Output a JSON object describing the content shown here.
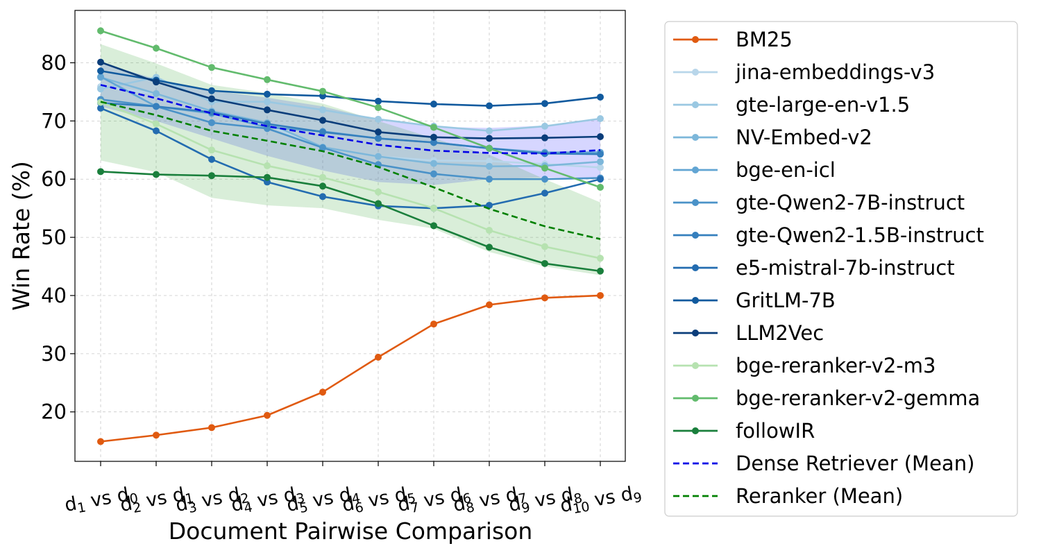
{
  "chart_data": {
    "type": "line",
    "title": "",
    "xlabel": "Document Pairwise Comparison",
    "ylabel": "Win Rate (%)",
    "ylim": [
      11.5,
      89
    ],
    "yticks": [
      20,
      30,
      40,
      50,
      60,
      70,
      80
    ],
    "grid": true,
    "legend_position": "outside-right",
    "categories": [
      {
        "left_sub": "1",
        "right_sub": "0",
        "label": "d1 vs d0"
      },
      {
        "left_sub": "2",
        "right_sub": "1",
        "label": "d2 vs d1"
      },
      {
        "left_sub": "3",
        "right_sub": "2",
        "label": "d3 vs d2"
      },
      {
        "left_sub": "4",
        "right_sub": "3",
        "label": "d4 vs d3"
      },
      {
        "left_sub": "5",
        "right_sub": "4",
        "label": "d5 vs d4"
      },
      {
        "left_sub": "6",
        "right_sub": "5",
        "label": "d6 vs d5"
      },
      {
        "left_sub": "7",
        "right_sub": "6",
        "label": "d7 vs d6"
      },
      {
        "left_sub": "8",
        "right_sub": "7",
        "label": "d8 vs d7"
      },
      {
        "left_sub": "9",
        "right_sub": "8",
        "label": "d9 vs d8"
      },
      {
        "left_sub": "10",
        "right_sub": "9",
        "label": "d10 vs d9"
      }
    ],
    "tick_letter": "d",
    "tick_vs": " vs ",
    "bands": [
      {
        "name": "Dense Retriever band",
        "color": "#6a6aff",
        "opacity": 0.28,
        "upper": [
          80.0,
          77.2,
          75.2,
          74.0,
          72.5,
          70.2,
          69.0,
          68.8,
          69.2,
          70.4
        ],
        "lower": [
          72.5,
          70.0,
          67.0,
          64.0,
          61.5,
          59.5,
          59.0,
          60.0,
          60.3,
          60.2
        ]
      },
      {
        "name": "Reranker band",
        "color": "#2ca02c",
        "opacity": 0.18,
        "upper": [
          83.2,
          79.9,
          76.2,
          74.8,
          73.0,
          70.0,
          67.0,
          64.2,
          60.0,
          56.0
        ],
        "lower": [
          63.2,
          61.2,
          56.8,
          55.5,
          55.0,
          53.0,
          51.5,
          47.5,
          45.0,
          43.5
        ]
      }
    ],
    "series": [
      {
        "name": "BM25",
        "color": "#e05a10",
        "dash": false,
        "marker": true,
        "values": [
          14.9,
          16.0,
          17.3,
          19.4,
          23.4,
          29.4,
          35.1,
          38.4,
          39.6,
          40.0
        ]
      },
      {
        "name": "jina-embeddings-v3",
        "color": "#b8d6ea",
        "dash": false,
        "marker": true,
        "values": [
          75.9,
          74.7,
          71.7,
          69.3,
          65.5,
          63.9,
          63.2,
          63.1,
          62.6,
          62.0
        ]
      },
      {
        "name": "gte-large-en-v1.5",
        "color": "#9ac8e2",
        "dash": false,
        "marker": true,
        "values": [
          75.5,
          77.5,
          73.3,
          73.3,
          71.9,
          70.3,
          69.1,
          68.3,
          69.1,
          70.4
        ]
      },
      {
        "name": "NV-Embed-v2",
        "color": "#7db7da",
        "dash": false,
        "marker": true,
        "values": [
          77.5,
          74.7,
          71.7,
          69.7,
          65.5,
          63.9,
          62.7,
          62.2,
          62.3,
          63.0
        ]
      },
      {
        "name": "bge-en-icl",
        "color": "#62a5d3",
        "dash": false,
        "marker": true,
        "values": [
          77.6,
          72.5,
          71.3,
          68.9,
          68.2,
          67.0,
          66.3,
          65.3,
          64.6,
          64.6
        ]
      },
      {
        "name": "gte-Qwen2-7B-instruct",
        "color": "#4a92c8",
        "dash": false,
        "marker": true,
        "values": [
          73.7,
          72.5,
          69.7,
          68.7,
          65.4,
          62.5,
          60.9,
          60.0,
          60.0,
          60.2
        ]
      },
      {
        "name": "gte-Qwen2-1.5B-instruct",
        "color": "#357fbd",
        "dash": false,
        "marker": true,
        "values": [
          73.1,
          72.5,
          71.5,
          69.5,
          68.1,
          67.0,
          66.3,
          65.3,
          64.4,
          64.3
        ]
      },
      {
        "name": "e5-mistral-7b-instruct",
        "color": "#236cb0",
        "dash": false,
        "marker": true,
        "values": [
          72.2,
          68.3,
          63.4,
          59.5,
          57.0,
          55.4,
          55.0,
          55.5,
          57.6,
          60.0
        ]
      },
      {
        "name": "GritLM-7B",
        "color": "#115a9e",
        "dash": false,
        "marker": true,
        "values": [
          78.6,
          77.0,
          75.2,
          74.6,
          74.3,
          73.4,
          72.9,
          72.6,
          73.0,
          74.1
        ]
      },
      {
        "name": "LLM2Vec",
        "color": "#0a3d7a",
        "dash": false,
        "marker": true,
        "values": [
          80.1,
          76.7,
          73.8,
          71.9,
          70.1,
          68.1,
          67.2,
          67.0,
          67.1,
          67.3
        ]
      },
      {
        "name": "bge-reranker-v2-m3",
        "color": "#b6e2b0",
        "dash": false,
        "marker": true,
        "values": [
          73.2,
          69.5,
          65.0,
          62.3,
          60.3,
          57.8,
          55.0,
          51.2,
          48.4,
          46.4
        ]
      },
      {
        "name": "bge-reranker-v2-gemma",
        "color": "#62bb6d",
        "dash": false,
        "marker": true,
        "values": [
          85.5,
          82.5,
          79.2,
          77.1,
          75.1,
          72.3,
          68.9,
          65.3,
          61.9,
          58.6
        ]
      },
      {
        "name": "followIR",
        "color": "#1a7f3c",
        "dash": false,
        "marker": true,
        "values": [
          61.3,
          60.8,
          60.6,
          60.3,
          58.8,
          55.8,
          52.0,
          48.3,
          45.5,
          44.2
        ]
      },
      {
        "name": "Dense Retriever (Mean)",
        "color": "#0000e6",
        "dash": true,
        "marker": false,
        "values": [
          76.2,
          73.9,
          71.3,
          69.1,
          67.5,
          65.9,
          64.9,
          64.5,
          64.4,
          65.0
        ]
      },
      {
        "name": "Reranker (Mean)",
        "color": "#008000",
        "dash": true,
        "marker": false,
        "values": [
          73.3,
          71.0,
          68.3,
          66.6,
          64.8,
          62.1,
          58.6,
          54.9,
          51.9,
          49.7
        ]
      }
    ]
  }
}
